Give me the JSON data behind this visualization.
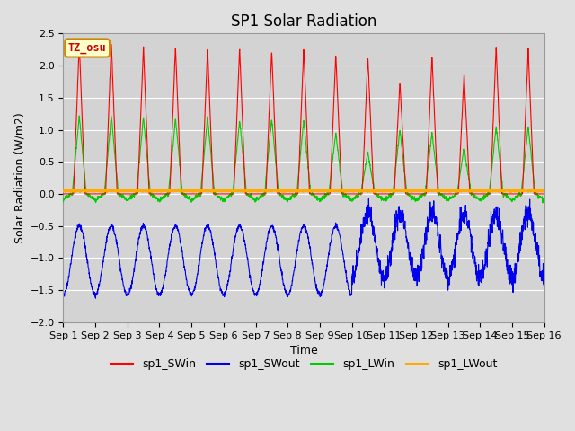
{
  "title": "SP1 Solar Radiation",
  "ylabel": "Solar Radiation (W/m2)",
  "xlabel": "Time",
  "ylim": [
    -2.0,
    2.5
  ],
  "xlim": [
    0,
    15
  ],
  "x_tick_labels": [
    "Sep 1",
    "Sep 2",
    "Sep 3",
    "Sep 4",
    "Sep 5",
    "Sep 6",
    "Sep 7",
    "Sep 8",
    "Sep 9",
    "Sep 10",
    "Sep 11",
    "Sep 12",
    "Sep 13",
    "Sep 14",
    "Sep 15",
    "Sep 16"
  ],
  "tz_label": "TZ_osu",
  "colors": {
    "sp1_SWin": "#ff0000",
    "sp1_SWout": "#0000ee",
    "sp1_LWin": "#00cc00",
    "sp1_LWout": "#ffaa00"
  },
  "legend_labels": [
    "sp1_SWin",
    "sp1_SWout",
    "sp1_LWin",
    "sp1_LWout"
  ],
  "background_color": "#e0e0e0",
  "plot_bg_color": "#d3d3d3",
  "grid_color": "#ffffff",
  "title_fontsize": 12,
  "axis_fontsize": 9,
  "tick_fontsize": 8
}
